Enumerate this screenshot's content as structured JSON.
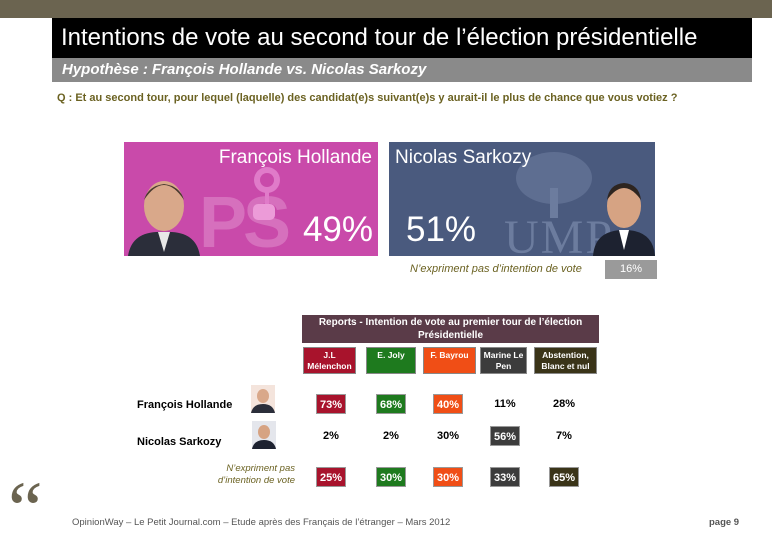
{
  "title": "Intentions de vote au second tour de l’élection présidentielle",
  "subtitle": "Hypothèse : François Hollande vs. Nicolas Sarkozy",
  "question": "Q : Et au second tour, pour lequel (laquelle) des candidat(e)s suivant(e)s y aurait-il le plus de chance que vous votiez ?",
  "candidates": [
    {
      "name": "François Hollande",
      "pct": "49%",
      "logo": "PS",
      "color": "#c94aaa"
    },
    {
      "name": "Nicolas Sarkozy",
      "pct": "51%",
      "logo": "UMP",
      "color": "#4a5a7e"
    }
  ],
  "abstention": {
    "label": "N’expriment pas d’intention de vote",
    "value": "16%"
  },
  "reports": {
    "header": "Reports - Intention de vote au premier tour de l’élection Présidentielle",
    "columns": [
      {
        "label": "J.L Mélenchon",
        "color": "#a8132c"
      },
      {
        "label": "E. Joly",
        "color": "#1e7a1e"
      },
      {
        "label": "F. Bayrou",
        "color": "#f04e16"
      },
      {
        "label": "Marine Le Pen",
        "color": "#3c3c3c"
      },
      {
        "label": "Abstention, Blanc et nul",
        "color": "#3a3418"
      }
    ],
    "rows": [
      {
        "label": "François Hollande",
        "values": [
          "73%",
          "68%",
          "40%",
          "11%",
          "28%"
        ]
      },
      {
        "label": "Nicolas Sarkozy",
        "values": [
          "2%",
          "2%",
          "30%",
          "56%",
          "7%"
        ]
      },
      {
        "label": "N’expriment pas d’intention de vote",
        "values": [
          "25%",
          "30%",
          "30%",
          "33%",
          "65%"
        ]
      }
    ]
  },
  "footer": "OpinionWay – Le Petit Journal.com – Etude après des Français de l’étranger – Mars 2012",
  "page": "page 9"
}
